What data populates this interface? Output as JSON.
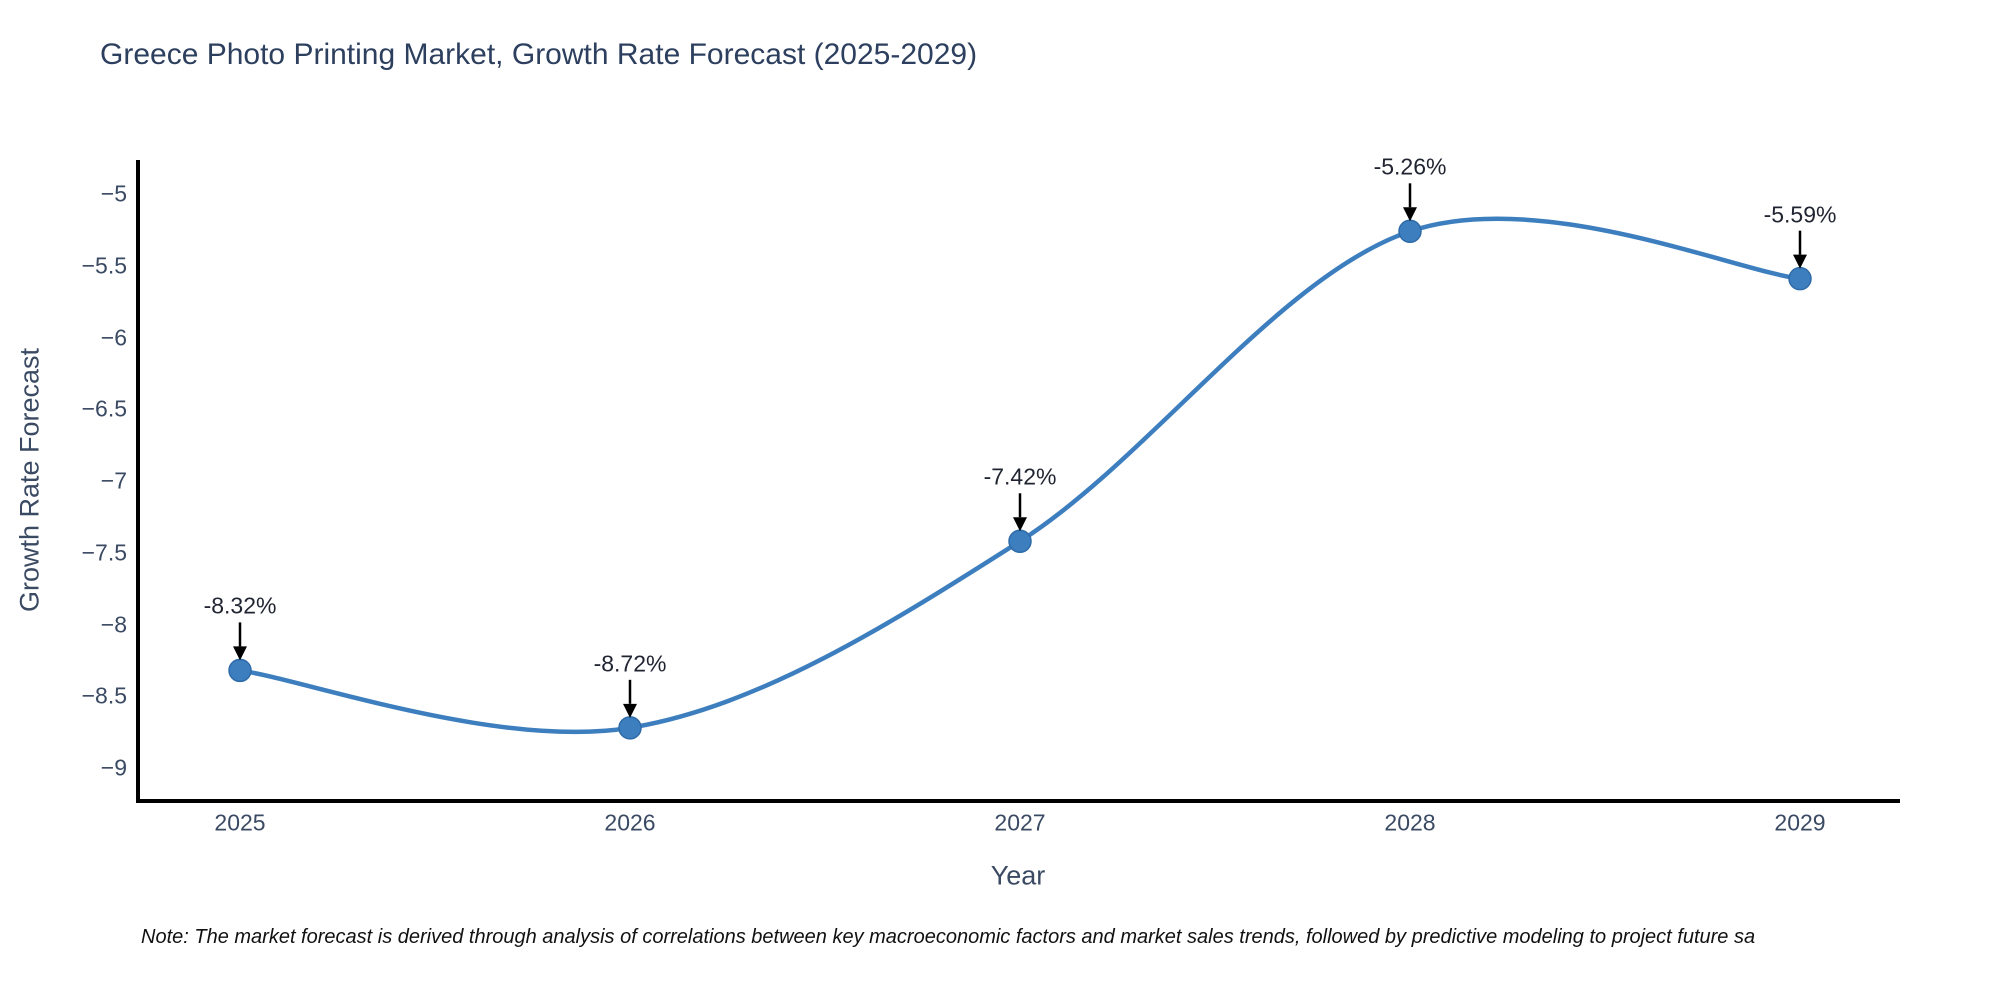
{
  "note": "Note: The market forecast is derived through analysis of correlations between key macroeconomic factors and market sales trends, followed by predictive modeling to project future sa",
  "chart_data": {
    "type": "line",
    "title": "Greece Photo Printing Market, Growth Rate Forecast (2025-2029)",
    "xlabel": "Year",
    "ylabel": "Growth Rate Forecast",
    "x": [
      2025,
      2026,
      2027,
      2028,
      2029
    ],
    "values": [
      -8.32,
      -8.72,
      -7.42,
      -5.26,
      -5.59
    ],
    "point_labels": [
      "-8.32%",
      "-8.72%",
      "-7.42%",
      "-5.26%",
      "-5.59%"
    ],
    "x_tick_labels": [
      "2025",
      "2026",
      "2027",
      "2028",
      "2029"
    ],
    "y_ticks": [
      -5,
      -5.5,
      -6,
      -6.5,
      -7,
      -7.5,
      -8,
      -8.5,
      -9
    ],
    "y_tick_labels": [
      "−5",
      "−5.5",
      "−6",
      "−6.5",
      "−7",
      "−7.5",
      "−8",
      "−8.5",
      "−9"
    ],
    "ylim": [
      -9.25,
      -4.75
    ],
    "grid": false,
    "legend": "none",
    "line_shape": "spline",
    "colors": {
      "line": "#3d7ebf",
      "marker": "#3d7ebf",
      "marker_edge": "#2e6ba8",
      "arrow": "#000000",
      "spine": "#000000",
      "title_text": "#2d3f5e",
      "axis_text": "#3b4a63",
      "annotation_text": "#1f2430",
      "note_text": "#111111",
      "background": "#ffffff"
    }
  }
}
